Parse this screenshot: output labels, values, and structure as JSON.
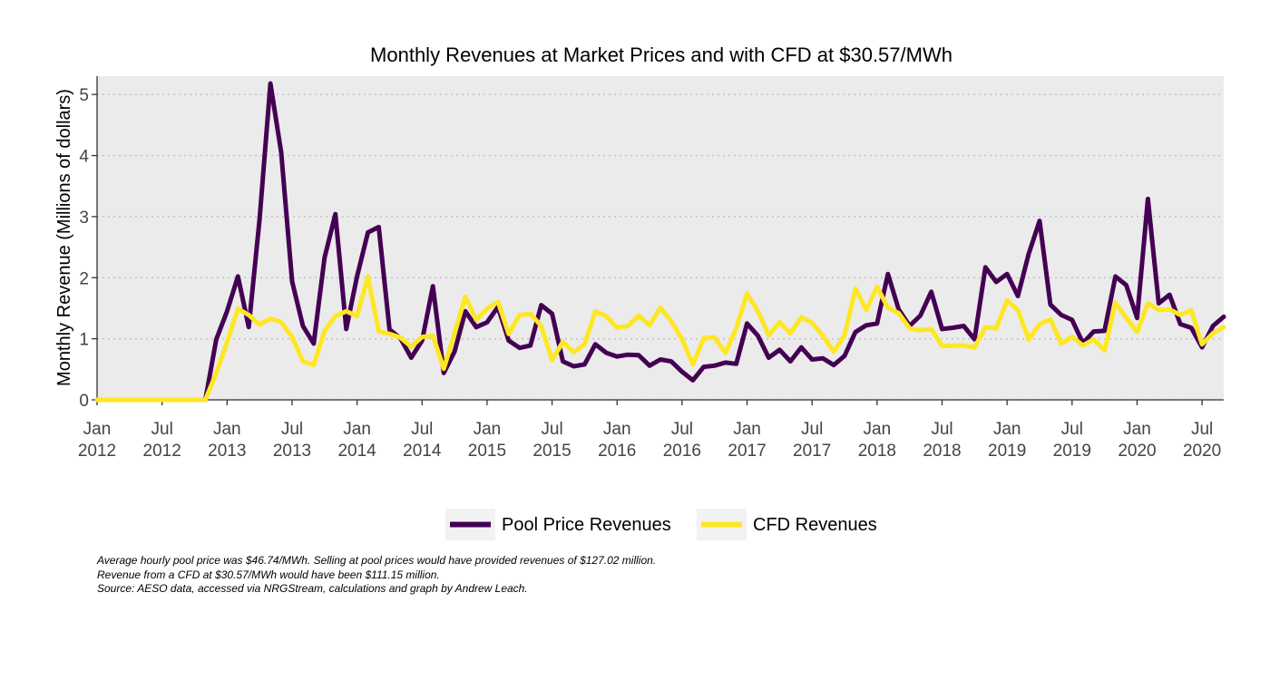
{
  "chart_data": {
    "type": "line",
    "title": "Monthly Revenues at Market Prices and with CFD at $30.57/MWh",
    "xlabel": "",
    "ylabel": "Monthly Revenue (Millions of dollars)",
    "x_start": "2012-01",
    "x_end": "2020-09",
    "ylim": [
      0,
      5.3
    ],
    "yticks": [
      0,
      1,
      2,
      3,
      4,
      5
    ],
    "xtick_labels": [
      {
        "month": "Jan",
        "year": "2012"
      },
      {
        "month": "Jul",
        "year": "2012"
      },
      {
        "month": "Jan",
        "year": "2013"
      },
      {
        "month": "Jul",
        "year": "2013"
      },
      {
        "month": "Jan",
        "year": "2014"
      },
      {
        "month": "Jul",
        "year": "2014"
      },
      {
        "month": "Jan",
        "year": "2015"
      },
      {
        "month": "Jul",
        "year": "2015"
      },
      {
        "month": "Jan",
        "year": "2016"
      },
      {
        "month": "Jul",
        "year": "2016"
      },
      {
        "month": "Jan",
        "year": "2017"
      },
      {
        "month": "Jul",
        "year": "2017"
      },
      {
        "month": "Jan",
        "year": "2018"
      },
      {
        "month": "Jul",
        "year": "2018"
      },
      {
        "month": "Jan",
        "year": "2019"
      },
      {
        "month": "Jul",
        "year": "2019"
      },
      {
        "month": "Jan",
        "year": "2020"
      },
      {
        "month": "Jul",
        "year": "2020"
      }
    ],
    "grid": "horizontal dotted",
    "legend_position": "bottom",
    "series": [
      {
        "name": "Pool Price Revenues",
        "color": "#440154",
        "values": [
          0,
          0,
          0,
          0,
          0,
          0,
          0,
          0,
          0,
          0,
          0,
          0.99,
          1.45,
          2.02,
          1.19,
          2.95,
          5.18,
          4.05,
          1.94,
          1.21,
          0.92,
          2.33,
          3.04,
          1.16,
          2.02,
          2.74,
          2.83,
          1.15,
          1.01,
          0.69,
          0.97,
          1.86,
          0.44,
          0.79,
          1.45,
          1.19,
          1.27,
          1.52,
          0.97,
          0.85,
          0.89,
          1.55,
          1.41,
          0.63,
          0.55,
          0.58,
          0.91,
          0.77,
          0.71,
          0.74,
          0.73,
          0.56,
          0.66,
          0.63,
          0.46,
          0.32,
          0.54,
          0.56,
          0.61,
          0.59,
          1.25,
          1.05,
          0.69,
          0.82,
          0.63,
          0.86,
          0.66,
          0.68,
          0.57,
          0.72,
          1.11,
          1.22,
          1.25,
          2.06,
          1.48,
          1.21,
          1.38,
          1.77,
          1.16,
          1.18,
          1.21,
          0.99,
          2.17,
          1.93,
          2.06,
          1.7,
          2.39,
          2.93,
          1.56,
          1.39,
          1.31,
          0.93,
          1.12,
          1.13,
          2.02,
          1.88,
          1.34,
          3.29,
          1.58,
          1.72,
          1.24,
          1.18,
          0.86,
          1.21,
          1.36
        ]
      },
      {
        "name": "CFD Revenues",
        "color": "#FDE725",
        "values": [
          0,
          0,
          0,
          0,
          0,
          0,
          0,
          0,
          0,
          0,
          0,
          0.44,
          0.94,
          1.49,
          1.39,
          1.23,
          1.33,
          1.27,
          1.03,
          0.63,
          0.57,
          1.13,
          1.37,
          1.45,
          1.37,
          2.02,
          1.12,
          1.08,
          1.02,
          0.87,
          1.03,
          1.05,
          0.51,
          1.09,
          1.69,
          1.31,
          1.49,
          1.61,
          1.08,
          1.39,
          1.41,
          1.21,
          0.65,
          0.95,
          0.78,
          0.91,
          1.45,
          1.37,
          1.18,
          1.21,
          1.38,
          1.22,
          1.51,
          1.29,
          0.99,
          0.58,
          1.01,
          1.02,
          0.77,
          1.17,
          1.74,
          1.45,
          1.06,
          1.27,
          1.09,
          1.35,
          1.26,
          1.05,
          0.79,
          1.06,
          1.82,
          1.47,
          1.85,
          1.51,
          1.42,
          1.17,
          1.14,
          1.16,
          0.88,
          0.89,
          0.89,
          0.86,
          1.19,
          1.17,
          1.63,
          1.47,
          0.99,
          1.24,
          1.32,
          0.92,
          1.03,
          0.89,
          0.99,
          0.81,
          1.59,
          1.34,
          1.11,
          1.58,
          1.47,
          1.48,
          1.39,
          1.47,
          0.91,
          1.09,
          1.19
        ]
      }
    ]
  },
  "caption": {
    "line1": "Average hourly pool price was $46.74/MWh. Selling at pool prices would have provided revenues of $127.02 million.",
    "line2": "Revenue from a CFD at $30.57/MWh would have been $111.15 million.",
    "line3": "Source: AESO data, accessed via NRGStream, calculations and graph by Andrew Leach."
  },
  "colors": {
    "panel_background": "#EBEBEB",
    "gridline": "#BEBEBE",
    "axis": "#333333",
    "legend_key_background": "#F2F2F2"
  }
}
